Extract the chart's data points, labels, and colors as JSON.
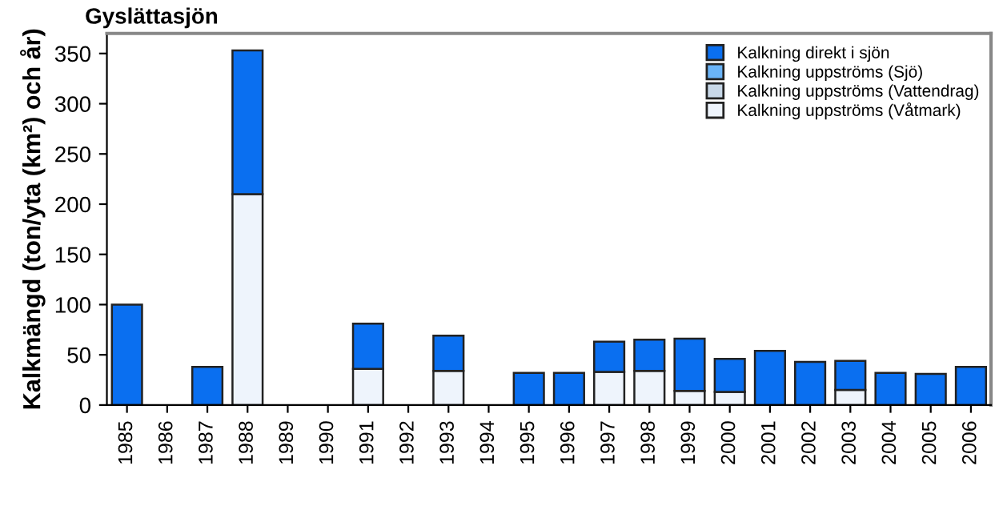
{
  "chart_data": {
    "type": "bar",
    "title": "Gyslättasjön",
    "ylabel": "Kalkmängd (ton/yta (km²) och år)",
    "stacked": true,
    "legend": "top right",
    "grid": false,
    "categories": [
      "1985",
      "1986",
      "1987",
      "1988",
      "1989",
      "1990",
      "1991",
      "1992",
      "1993",
      "1994",
      "1995",
      "1996",
      "1997",
      "1998",
      "1999",
      "2000",
      "2001",
      "2002",
      "2003",
      "2004",
      "2005",
      "2006"
    ],
    "series": [
      {
        "name": "Kalkning uppströms (Våtmark)",
        "color": "#eef4fc",
        "values": [
          null,
          null,
          null,
          210,
          null,
          null,
          36,
          null,
          34,
          null,
          null,
          null,
          33,
          34,
          14,
          13,
          null,
          null,
          15,
          null,
          null,
          null
        ]
      },
      {
        "name": "Kalkning uppströms (Vattendrag)",
        "color": "#c8d8e8",
        "values": [
          null,
          null,
          null,
          null,
          null,
          null,
          null,
          null,
          null,
          null,
          null,
          null,
          null,
          null,
          null,
          null,
          null,
          null,
          null,
          null,
          null,
          null
        ]
      },
      {
        "name": "Kalkning uppströms (Sjö)",
        "color": "#6ab4f8",
        "values": [
          null,
          null,
          null,
          null,
          null,
          null,
          null,
          null,
          null,
          null,
          null,
          null,
          null,
          null,
          null,
          null,
          null,
          null,
          null,
          null,
          null,
          null
        ]
      },
      {
        "name": "Kalkning direkt i sjön",
        "color": "#0a6ff0",
        "values": [
          100,
          null,
          38,
          143,
          null,
          null,
          45,
          null,
          35,
          null,
          32,
          32,
          30,
          31,
          52,
          33,
          54,
          43,
          29,
          32,
          31,
          38
        ]
      }
    ],
    "ylim": [
      0,
      370
    ],
    "yticks": [
      0,
      50,
      100,
      150,
      200,
      250,
      300,
      350
    ]
  }
}
